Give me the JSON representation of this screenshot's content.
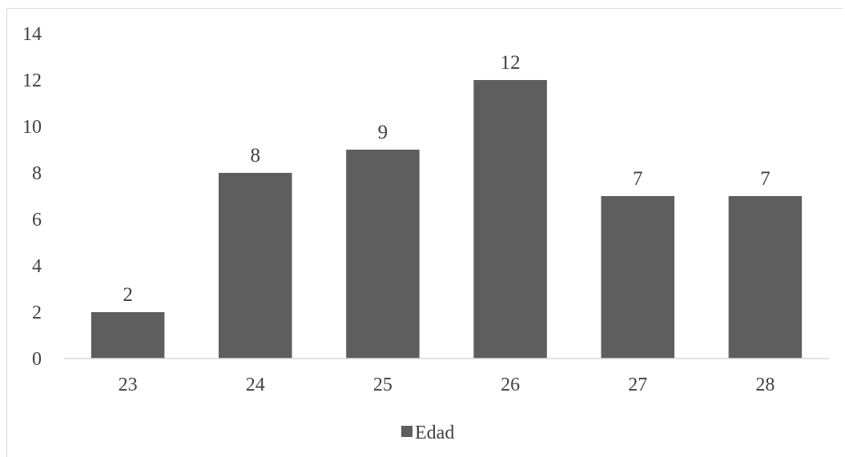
{
  "chart_data": {
    "type": "bar",
    "title": "",
    "xlabel": "",
    "ylabel": "",
    "categories": [
      "23",
      "24",
      "25",
      "26",
      "27",
      "28"
    ],
    "series": [
      {
        "name": "Edad",
        "values": [
          2,
          8,
          9,
          12,
          7,
          7
        ],
        "color": "#5e5e5e"
      }
    ],
    "ylim": [
      0,
      14
    ],
    "yticks": [
      0,
      2,
      4,
      6,
      8,
      10,
      12,
      14
    ],
    "grid": false,
    "data_labels": true,
    "legend_position": "bottom"
  }
}
